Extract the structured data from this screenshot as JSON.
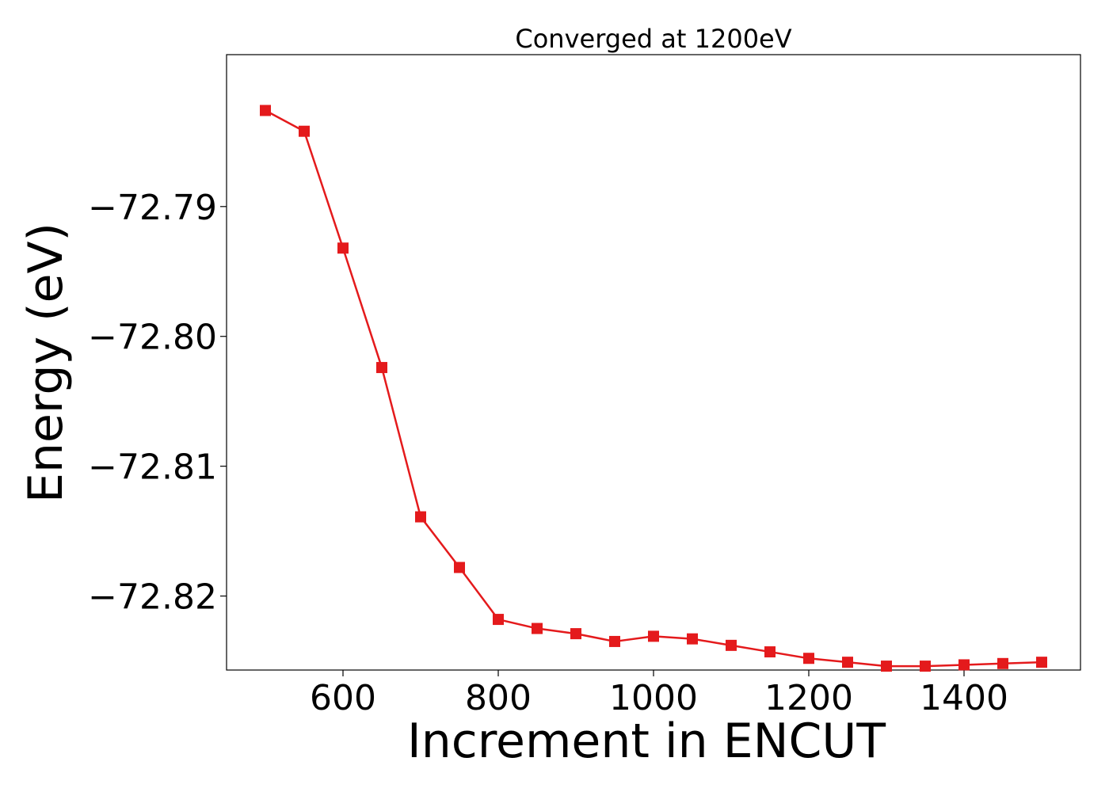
{
  "chart_data": {
    "type": "line",
    "title": "Converged at 1200eV",
    "xlabel": "Increment in ENCUT",
    "ylabel": "Energy (eV)",
    "xlim": [
      450,
      1550
    ],
    "ylim": [
      -72.8257,
      -72.7783
    ],
    "x_ticks": [
      600,
      800,
      1000,
      1200,
      1400
    ],
    "x_tick_labels": [
      "600",
      "800",
      "1000",
      "1200",
      "1400"
    ],
    "y_ticks": [
      -72.79,
      -72.8,
      -72.81,
      -72.82
    ],
    "y_tick_labels": [
      "−72.79",
      "−72.80",
      "−72.81",
      "−72.82"
    ],
    "grid": false,
    "series": [
      {
        "color": "#e41a1c",
        "marker": "square",
        "x": [
          500,
          550,
          600,
          650,
          700,
          750,
          800,
          850,
          900,
          950,
          1000,
          1050,
          1100,
          1150,
          1200,
          1250,
          1300,
          1350,
          1400,
          1450,
          1500
        ],
        "y": [
          -72.7826,
          -72.7842,
          -72.7932,
          -72.8024,
          -72.8139,
          -72.8178,
          -72.8218,
          -72.8225,
          -72.8229,
          -72.8235,
          -72.8231,
          -72.8233,
          -72.8238,
          -72.8243,
          -72.8248,
          -72.8251,
          -72.8254,
          -72.8254,
          -72.8253,
          -72.8252,
          -72.8251
        ]
      }
    ]
  }
}
